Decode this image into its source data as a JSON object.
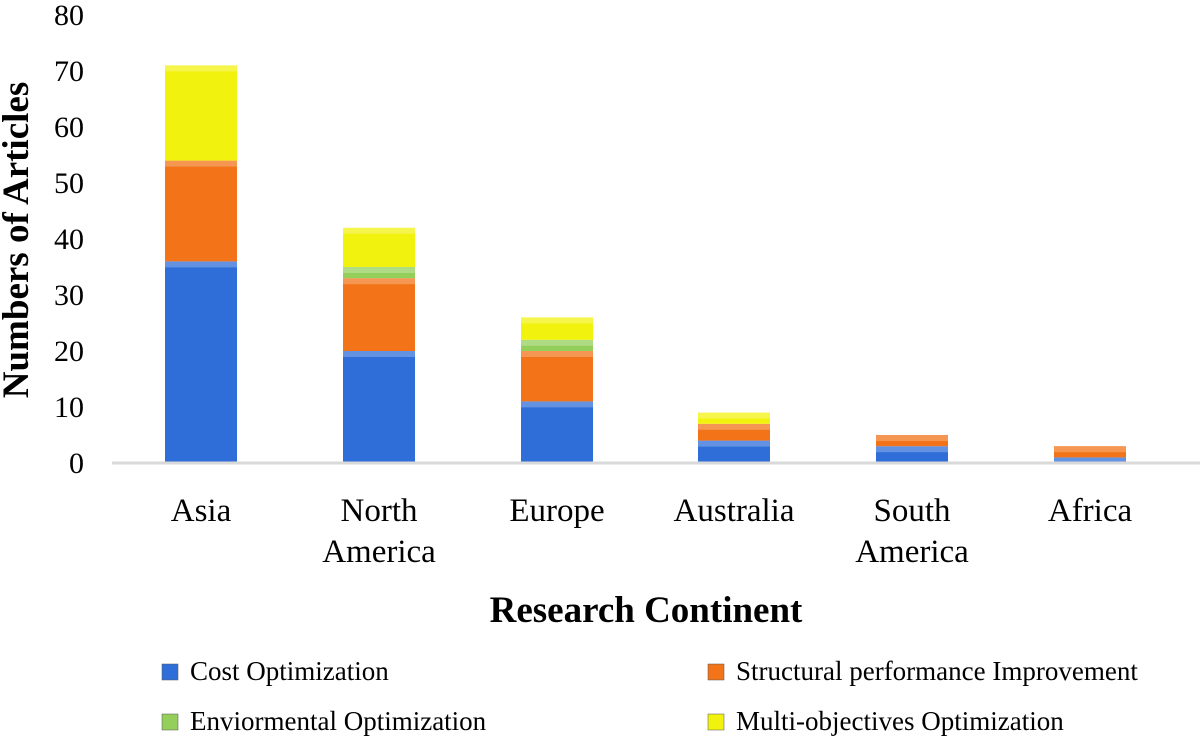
{
  "chart_data": {
    "type": "bar",
    "stacked": true,
    "title": "",
    "xlabel": "Research Continent",
    "ylabel": "Numbers of Articles",
    "ylim": [
      0,
      80
    ],
    "yticks": [
      0,
      10,
      20,
      30,
      40,
      50,
      60,
      70,
      80
    ],
    "categories": [
      [
        "Asia"
      ],
      [
        "North",
        "America"
      ],
      [
        "Europe"
      ],
      [
        "Australia"
      ],
      [
        "South",
        "America"
      ],
      [
        "Africa"
      ]
    ],
    "series": [
      {
        "name": "Cost Optimization",
        "color": "#2F6ED9",
        "values": [
          36,
          20,
          11,
          4,
          3,
          1
        ]
      },
      {
        "name": "Structural performance Improvement",
        "color": "#F27318",
        "values": [
          18,
          13,
          9,
          3,
          2,
          2
        ]
      },
      {
        "name": "Enviormental Optimization",
        "color": "#93CF5A",
        "values": [
          0,
          2,
          2,
          0,
          0,
          0
        ]
      },
      {
        "name": "Multi-objectives Optimization",
        "color": "#F2F20F",
        "values": [
          17,
          7,
          4,
          2,
          0,
          0
        ]
      }
    ],
    "grid": false,
    "legend_position": "bottom"
  }
}
